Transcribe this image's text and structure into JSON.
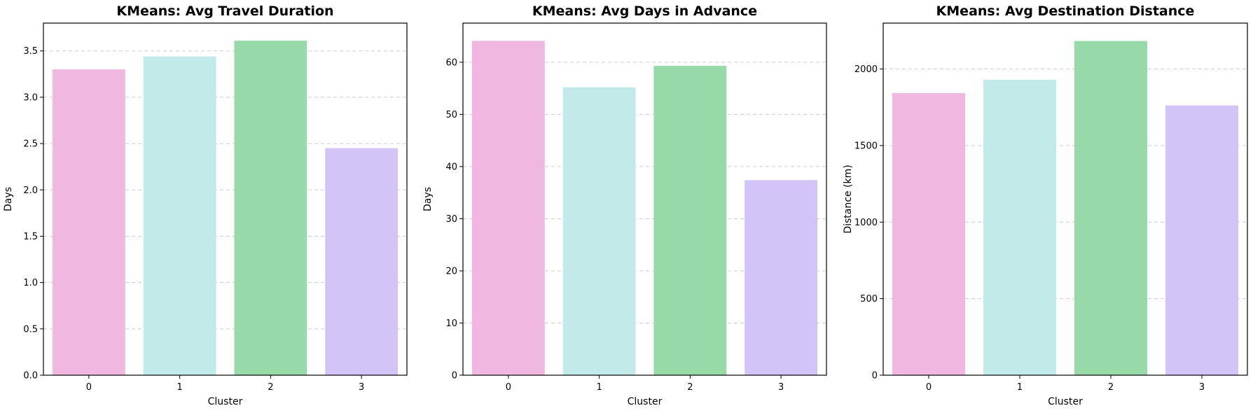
{
  "chart_data": [
    {
      "type": "bar",
      "title": "KMeans: Avg Travel Duration",
      "xlabel": "Cluster",
      "ylabel": "Days",
      "categories": [
        "0",
        "1",
        "2",
        "3"
      ],
      "values": [
        3.3,
        3.44,
        3.61,
        2.45
      ],
      "colors": [
        "#f0b8e0",
        "#c2eae8",
        "#98d9a8",
        "#d3c4f7"
      ],
      "ylim": [
        0,
        3.8
      ],
      "yticks": [
        0.0,
        0.5,
        1.0,
        1.5,
        2.0,
        2.5,
        3.0,
        3.5
      ],
      "ytick_labels": [
        "0.0",
        "0.5",
        "1.0",
        "1.5",
        "2.0",
        "2.5",
        "3.0",
        "3.5"
      ],
      "grid": "y"
    },
    {
      "type": "bar",
      "title": "KMeans: Avg Days in Advance",
      "xlabel": "Cluster",
      "ylabel": "Days",
      "categories": [
        "0",
        "1",
        "2",
        "3"
      ],
      "values": [
        64.1,
        55.2,
        59.3,
        37.4
      ],
      "colors": [
        "#f0b8e0",
        "#c2eae8",
        "#98d9a8",
        "#d3c4f7"
      ],
      "ylim": [
        0,
        67.5
      ],
      "yticks": [
        0,
        10,
        20,
        30,
        40,
        50,
        60
      ],
      "ytick_labels": [
        "0",
        "10",
        "20",
        "30",
        "40",
        "50",
        "60"
      ],
      "grid": "y"
    },
    {
      "type": "bar",
      "title": "KMeans: Avg Destination Distance",
      "xlabel": "Cluster",
      "ylabel": "Distance (km)",
      "categories": [
        "0",
        "1",
        "2",
        "3"
      ],
      "values": [
        1843,
        1930,
        2183,
        1762
      ],
      "colors": [
        "#f0b8e0",
        "#c2eae8",
        "#98d9a8",
        "#d3c4f7"
      ],
      "ylim": [
        0,
        2300
      ],
      "yticks": [
        0,
        500,
        1000,
        1500,
        2000
      ],
      "ytick_labels": [
        "0",
        "500",
        "1000",
        "1500",
        "2000"
      ],
      "grid": "y"
    }
  ]
}
